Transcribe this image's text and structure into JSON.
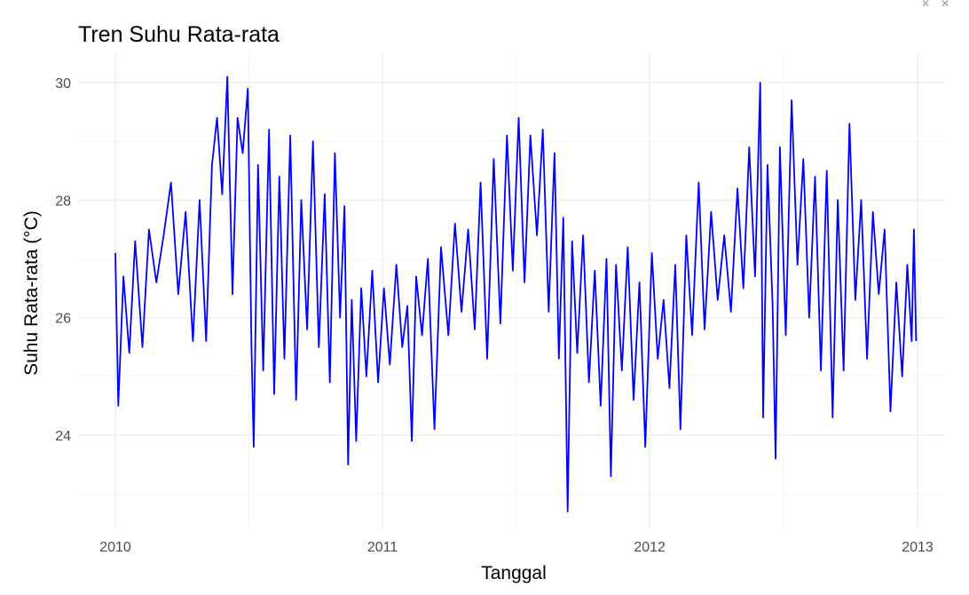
{
  "chart_data": {
    "type": "line",
    "title": "Tren Suhu Rata-rata",
    "xlabel": "Tanggal",
    "ylabel": "Suhu Rata-rata (°C)",
    "x_ticks": [
      "2010",
      "2011",
      "2012",
      "2013"
    ],
    "y_ticks": [
      "24",
      "26",
      "28",
      "30"
    ],
    "xlim": [
      "2010-01-01",
      "2013-01-01"
    ],
    "ylim": [
      22.6,
      30.1
    ],
    "grid": true,
    "legend": "none",
    "series": [
      {
        "color": "#0000ff",
        "points": [
          [
            "2010-01-01",
            27.1
          ],
          [
            "2010-01-05",
            24.5
          ],
          [
            "2010-01-12",
            26.7
          ],
          [
            "2010-01-20",
            25.4
          ],
          [
            "2010-01-28",
            27.3
          ],
          [
            "2010-02-07",
            25.5
          ],
          [
            "2010-02-16",
            27.5
          ],
          [
            "2010-02-26",
            26.6
          ],
          [
            "2010-03-08",
            27.4
          ],
          [
            "2010-03-18",
            28.3
          ],
          [
            "2010-03-28",
            26.4
          ],
          [
            "2010-04-07",
            27.8
          ],
          [
            "2010-04-17",
            25.6
          ],
          [
            "2010-04-26",
            28.0
          ],
          [
            "2010-05-05",
            25.6
          ],
          [
            "2010-05-13",
            28.6
          ],
          [
            "2010-05-20",
            29.4
          ],
          [
            "2010-05-27",
            28.1
          ],
          [
            "2010-06-03",
            30.1
          ],
          [
            "2010-06-10",
            26.4
          ],
          [
            "2010-06-17",
            29.4
          ],
          [
            "2010-06-24",
            28.8
          ],
          [
            "2010-07-01",
            29.9
          ],
          [
            "2010-07-06",
            25.5
          ],
          [
            "2010-07-09",
            23.8
          ],
          [
            "2010-07-15",
            28.6
          ],
          [
            "2010-07-22",
            25.1
          ],
          [
            "2010-07-30",
            29.2
          ],
          [
            "2010-08-06",
            24.7
          ],
          [
            "2010-08-13",
            28.4
          ],
          [
            "2010-08-20",
            25.3
          ],
          [
            "2010-08-28",
            29.1
          ],
          [
            "2010-09-05",
            24.6
          ],
          [
            "2010-09-12",
            28.0
          ],
          [
            "2010-09-20",
            25.8
          ],
          [
            "2010-09-28",
            29.0
          ],
          [
            "2010-10-06",
            25.5
          ],
          [
            "2010-10-14",
            28.1
          ],
          [
            "2010-10-21",
            24.9
          ],
          [
            "2010-10-28",
            28.8
          ],
          [
            "2010-11-04",
            26.0
          ],
          [
            "2010-11-10",
            27.9
          ],
          [
            "2010-11-15",
            23.5
          ],
          [
            "2010-11-20",
            26.3
          ],
          [
            "2010-11-26",
            23.9
          ],
          [
            "2010-12-03",
            26.5
          ],
          [
            "2010-12-10",
            25.0
          ],
          [
            "2010-12-18",
            26.8
          ],
          [
            "2010-12-26",
            24.9
          ],
          [
            "2011-01-03",
            26.5
          ],
          [
            "2011-01-11",
            25.2
          ],
          [
            "2011-01-20",
            26.9
          ],
          [
            "2011-01-28",
            25.5
          ],
          [
            "2011-02-04",
            26.2
          ],
          [
            "2011-02-10",
            23.9
          ],
          [
            "2011-02-16",
            26.7
          ],
          [
            "2011-02-24",
            25.7
          ],
          [
            "2011-03-04",
            27.0
          ],
          [
            "2011-03-13",
            24.1
          ],
          [
            "2011-03-22",
            27.2
          ],
          [
            "2011-04-01",
            25.7
          ],
          [
            "2011-04-10",
            27.6
          ],
          [
            "2011-04-19",
            26.1
          ],
          [
            "2011-04-28",
            27.5
          ],
          [
            "2011-05-07",
            25.8
          ],
          [
            "2011-05-15",
            28.3
          ],
          [
            "2011-05-24",
            25.3
          ],
          [
            "2011-06-02",
            28.7
          ],
          [
            "2011-06-11",
            25.9
          ],
          [
            "2011-06-20",
            29.1
          ],
          [
            "2011-06-28",
            26.8
          ],
          [
            "2011-07-06",
            29.4
          ],
          [
            "2011-07-14",
            26.6
          ],
          [
            "2011-07-22",
            29.1
          ],
          [
            "2011-07-31",
            27.4
          ],
          [
            "2011-08-08",
            29.2
          ],
          [
            "2011-08-16",
            26.1
          ],
          [
            "2011-08-24",
            28.8
          ],
          [
            "2011-08-30",
            25.3
          ],
          [
            "2011-09-05",
            27.7
          ],
          [
            "2011-09-11",
            22.7
          ],
          [
            "2011-09-17",
            27.3
          ],
          [
            "2011-09-24",
            25.4
          ],
          [
            "2011-10-02",
            27.4
          ],
          [
            "2011-10-10",
            24.9
          ],
          [
            "2011-10-18",
            26.8
          ],
          [
            "2011-10-26",
            24.5
          ],
          [
            "2011-11-03",
            27.0
          ],
          [
            "2011-11-09",
            23.3
          ],
          [
            "2011-11-16",
            26.9
          ],
          [
            "2011-11-24",
            25.1
          ],
          [
            "2011-12-02",
            27.2
          ],
          [
            "2011-12-10",
            24.6
          ],
          [
            "2011-12-18",
            26.6
          ],
          [
            "2011-12-26",
            23.8
          ],
          [
            "2012-01-04",
            27.1
          ],
          [
            "2012-01-12",
            25.3
          ],
          [
            "2012-01-20",
            26.3
          ],
          [
            "2012-01-28",
            24.8
          ],
          [
            "2012-02-05",
            26.9
          ],
          [
            "2012-02-12",
            24.1
          ],
          [
            "2012-02-20",
            27.4
          ],
          [
            "2012-02-28",
            25.7
          ],
          [
            "2012-03-08",
            28.3
          ],
          [
            "2012-03-16",
            25.8
          ],
          [
            "2012-03-25",
            27.8
          ],
          [
            "2012-04-03",
            26.3
          ],
          [
            "2012-04-12",
            27.4
          ],
          [
            "2012-04-21",
            26.1
          ],
          [
            "2012-04-30",
            28.2
          ],
          [
            "2012-05-08",
            26.5
          ],
          [
            "2012-05-16",
            28.9
          ],
          [
            "2012-05-24",
            26.7
          ],
          [
            "2012-05-31",
            30.0
          ],
          [
            "2012-06-04",
            24.3
          ],
          [
            "2012-06-10",
            28.6
          ],
          [
            "2012-06-17",
            26.2
          ],
          [
            "2012-06-21",
            23.6
          ],
          [
            "2012-06-27",
            28.9
          ],
          [
            "2012-07-05",
            25.7
          ],
          [
            "2012-07-13",
            29.7
          ],
          [
            "2012-07-21",
            26.9
          ],
          [
            "2012-07-29",
            28.7
          ],
          [
            "2012-08-06",
            26.0
          ],
          [
            "2012-08-14",
            28.4
          ],
          [
            "2012-08-22",
            25.1
          ],
          [
            "2012-08-30",
            28.5
          ],
          [
            "2012-09-07",
            24.3
          ],
          [
            "2012-09-14",
            28.0
          ],
          [
            "2012-09-22",
            25.1
          ],
          [
            "2012-09-30",
            29.3
          ],
          [
            "2012-10-08",
            26.3
          ],
          [
            "2012-10-16",
            28.0
          ],
          [
            "2012-10-24",
            25.3
          ],
          [
            "2012-11-01",
            27.8
          ],
          [
            "2012-11-09",
            26.4
          ],
          [
            "2012-11-17",
            27.5
          ],
          [
            "2012-11-25",
            24.4
          ],
          [
            "2012-12-03",
            26.6
          ],
          [
            "2012-12-11",
            25.0
          ],
          [
            "2012-12-18",
            26.9
          ],
          [
            "2012-12-24",
            25.6
          ],
          [
            "2012-12-27",
            27.5
          ],
          [
            "2012-12-30",
            25.6
          ]
        ]
      }
    ]
  }
}
